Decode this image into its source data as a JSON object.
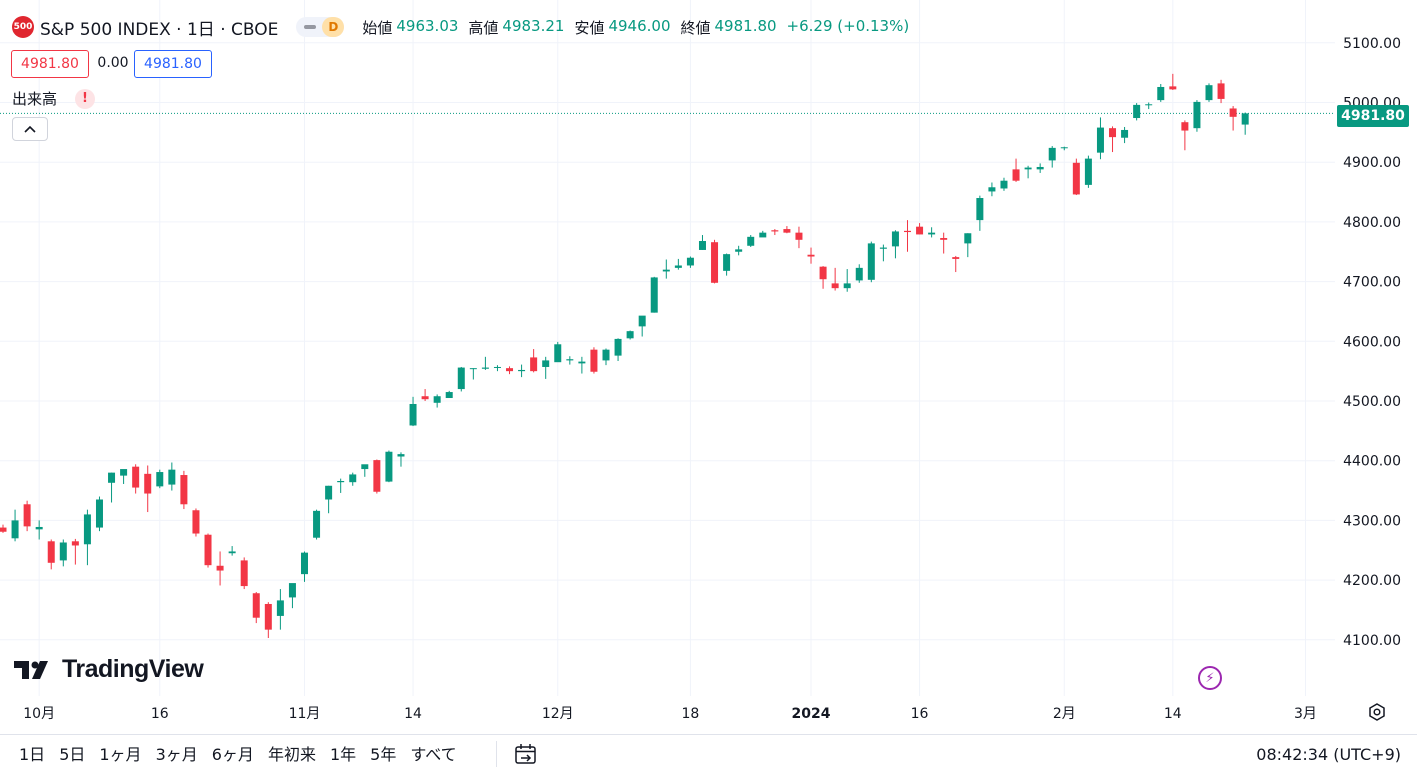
{
  "header": {
    "symbol_badge": "500",
    "title": "S&P 500 INDEX · 1日 · CBOE",
    "market_status": "D",
    "ohlc": [
      {
        "label": "始値",
        "value": "4963.03"
      },
      {
        "label": "高値",
        "value": "4983.21"
      },
      {
        "label": "安値",
        "value": "4946.00"
      },
      {
        "label": "終値",
        "value": "4981.80"
      }
    ],
    "change": "+6.29 (+0.13%)"
  },
  "price_boxes": {
    "bid": "4981.80",
    "spread": "0.00",
    "ask": "4981.80"
  },
  "volume_label": "出来高",
  "volume_warning": "!",
  "last_price_label": "4981.80",
  "logo_text": "TradingView",
  "toolbar": {
    "ranges": [
      "1日",
      "5日",
      "1ヶ月",
      "3ヶ月",
      "6ヶ月",
      "年初来",
      "1年",
      "5年",
      "すべて"
    ],
    "clock": "08:42:34 (UTC+9)"
  },
  "icons": {
    "calendar": "calendar-goto-icon",
    "settings": "settings-icon",
    "bolt": "lightning-icon",
    "collapse": "chevron-up-icon"
  },
  "colors": {
    "up": "#089981",
    "down": "#f23645",
    "grid": "#f0f3fa",
    "text": "#131722"
  },
  "chart_data": {
    "type": "candlestick",
    "title": "S&P 500 INDEX · 1日 · CBOE",
    "ylim": [
      4025,
      5125
    ],
    "y_ticks": [
      "4100.00",
      "4200.00",
      "4300.00",
      "4400.00",
      "4500.00",
      "4600.00",
      "4700.00",
      "4800.00",
      "4900.00",
      "5000.00",
      "5100.00"
    ],
    "x_ticks": [
      {
        "index": 3,
        "label": "10月",
        "bold": false
      },
      {
        "index": 13,
        "label": "16",
        "bold": false
      },
      {
        "index": 25,
        "label": "11月",
        "bold": false
      },
      {
        "index": 34,
        "label": "14",
        "bold": false
      },
      {
        "index": 46,
        "label": "12月",
        "bold": false
      },
      {
        "index": 57,
        "label": "18",
        "bold": false
      },
      {
        "index": 67,
        "label": "2024",
        "bold": true
      },
      {
        "index": 76,
        "label": "16",
        "bold": false
      },
      {
        "index": 88,
        "label": "2月",
        "bold": false
      },
      {
        "index": 97,
        "label": "14",
        "bold": false
      },
      {
        "index": 108,
        "label": "3月",
        "bold": false
      }
    ],
    "last_close": 4981.8,
    "candles": [
      {
        "o": 4288,
        "h": 4293,
        "l": 4279,
        "c": 4281
      },
      {
        "o": 4270,
        "h": 4318,
        "l": 4265,
        "c": 4300
      },
      {
        "o": 4327,
        "h": 4333,
        "l": 4282,
        "c": 4290
      },
      {
        "o": 4285,
        "h": 4300,
        "l": 4268,
        "c": 4289
      },
      {
        "o": 4265,
        "h": 4268,
        "l": 4218,
        "c": 4229
      },
      {
        "o": 4233,
        "h": 4268,
        "l": 4223,
        "c": 4263
      },
      {
        "o": 4265,
        "h": 4269,
        "l": 4226,
        "c": 4258
      },
      {
        "o": 4260,
        "h": 4318,
        "l": 4225,
        "c": 4310
      },
      {
        "o": 4288,
        "h": 4340,
        "l": 4282,
        "c": 4335
      },
      {
        "o": 4363,
        "h": 4380,
        "l": 4330,
        "c": 4380
      },
      {
        "o": 4375,
        "h": 4385,
        "l": 4361,
        "c": 4386
      },
      {
        "o": 4390,
        "h": 4394,
        "l": 4345,
        "c": 4355
      },
      {
        "o": 4378,
        "h": 4392,
        "l": 4314,
        "c": 4345
      },
      {
        "o": 4357,
        "h": 4385,
        "l": 4354,
        "c": 4381
      },
      {
        "o": 4360,
        "h": 4397,
        "l": 4350,
        "c": 4385
      },
      {
        "o": 4376,
        "h": 4383,
        "l": 4319,
        "c": 4327
      },
      {
        "o": 4317,
        "h": 4320,
        "l": 4273,
        "c": 4278
      },
      {
        "o": 4276,
        "h": 4278,
        "l": 4221,
        "c": 4225
      },
      {
        "o": 4224,
        "h": 4248,
        "l": 4191,
        "c": 4216
      },
      {
        "o": 4245,
        "h": 4257,
        "l": 4241,
        "c": 4248
      },
      {
        "o": 4233,
        "h": 4238,
        "l": 4185,
        "c": 4190
      },
      {
        "o": 4178,
        "h": 4180,
        "l": 4128,
        "c": 4137
      },
      {
        "o": 4160,
        "h": 4163,
        "l": 4103,
        "c": 4117
      },
      {
        "o": 4140,
        "h": 4185,
        "l": 4117,
        "c": 4166
      },
      {
        "o": 4171,
        "h": 4194,
        "l": 4153,
        "c": 4195
      },
      {
        "o": 4210,
        "h": 4248,
        "l": 4197,
        "c": 4246
      },
      {
        "o": 4271,
        "h": 4318,
        "l": 4268,
        "c": 4316
      },
      {
        "o": 4335,
        "h": 4358,
        "l": 4312,
        "c": 4358
      },
      {
        "o": 4364,
        "h": 4370,
        "l": 4346,
        "c": 4366
      },
      {
        "o": 4364,
        "h": 4380,
        "l": 4358,
        "c": 4377
      },
      {
        "o": 4386,
        "h": 4392,
        "l": 4373,
        "c": 4394
      },
      {
        "o": 4401,
        "h": 4402,
        "l": 4345,
        "c": 4348
      },
      {
        "o": 4365,
        "h": 4417,
        "l": 4364,
        "c": 4415
      },
      {
        "o": 4407,
        "h": 4414,
        "l": 4390,
        "c": 4411
      },
      {
        "o": 4459,
        "h": 4507,
        "l": 4458,
        "c": 4495
      },
      {
        "o": 4508,
        "h": 4520,
        "l": 4500,
        "c": 4503
      },
      {
        "o": 4497,
        "h": 4511,
        "l": 4489,
        "c": 4508
      },
      {
        "o": 4505,
        "h": 4517,
        "l": 4505,
        "c": 4515
      },
      {
        "o": 4520,
        "h": 4557,
        "l": 4516,
        "c": 4556
      },
      {
        "o": 4555,
        "h": 4555,
        "l": 4536,
        "c": 4555
      },
      {
        "o": 4554,
        "h": 4574,
        "l": 4552,
        "c": 4556
      },
      {
        "o": 4557,
        "h": 4560,
        "l": 4550,
        "c": 4557
      },
      {
        "o": 4555,
        "h": 4558,
        "l": 4545,
        "c": 4550
      },
      {
        "o": 4550,
        "h": 4561,
        "l": 4540,
        "c": 4552
      },
      {
        "o": 4573,
        "h": 4587,
        "l": 4548,
        "c": 4550
      },
      {
        "o": 4557,
        "h": 4574,
        "l": 4537,
        "c": 4568
      },
      {
        "o": 4565,
        "h": 4599,
        "l": 4567,
        "c": 4595
      },
      {
        "o": 4568,
        "h": 4575,
        "l": 4561,
        "c": 4570
      },
      {
        "o": 4563,
        "h": 4574,
        "l": 4546,
        "c": 4566
      },
      {
        "o": 4586,
        "h": 4590,
        "l": 4546,
        "c": 4549
      },
      {
        "o": 4568,
        "h": 4588,
        "l": 4560,
        "c": 4586
      },
      {
        "o": 4576,
        "h": 4605,
        "l": 4567,
        "c": 4604
      },
      {
        "o": 4605,
        "h": 4618,
        "l": 4603,
        "c": 4617
      },
      {
        "o": 4625,
        "h": 4633,
        "l": 4608,
        "c": 4643
      },
      {
        "o": 4648,
        "h": 4708,
        "l": 4648,
        "c": 4707
      },
      {
        "o": 4717,
        "h": 4737,
        "l": 4705,
        "c": 4720
      },
      {
        "o": 4723,
        "h": 4738,
        "l": 4720,
        "c": 4727
      },
      {
        "o": 4727,
        "h": 4742,
        "l": 4723,
        "c": 4740
      },
      {
        "o": 4753,
        "h": 4778,
        "l": 4753,
        "c": 4768
      },
      {
        "o": 4766,
        "h": 4770,
        "l": 4697,
        "c": 4698
      },
      {
        "o": 4718,
        "h": 4747,
        "l": 4710,
        "c": 4746
      },
      {
        "o": 4750,
        "h": 4760,
        "l": 4744,
        "c": 4754
      },
      {
        "o": 4760,
        "h": 4778,
        "l": 4758,
        "c": 4775
      },
      {
        "o": 4774,
        "h": 4785,
        "l": 4775,
        "c": 4782
      },
      {
        "o": 4786,
        "h": 4788,
        "l": 4778,
        "c": 4784
      },
      {
        "o": 4788,
        "h": 4793,
        "l": 4781,
        "c": 4782
      },
      {
        "o": 4782,
        "h": 4792,
        "l": 4756,
        "c": 4770
      },
      {
        "o": 4745,
        "h": 4757,
        "l": 4730,
        "c": 4742
      },
      {
        "o": 4725,
        "h": 4726,
        "l": 4688,
        "c": 4704
      },
      {
        "o": 4697,
        "h": 4723,
        "l": 4685,
        "c": 4689
      },
      {
        "o": 4689,
        "h": 4721,
        "l": 4683,
        "c": 4697
      },
      {
        "o": 4702,
        "h": 4729,
        "l": 4698,
        "c": 4723
      },
      {
        "o": 4703,
        "h": 4767,
        "l": 4699,
        "c": 4764
      },
      {
        "o": 4755,
        "h": 4762,
        "l": 4734,
        "c": 4757
      },
      {
        "o": 4759,
        "h": 4786,
        "l": 4739,
        "c": 4784
      },
      {
        "o": 4785,
        "h": 4803,
        "l": 4750,
        "c": 4783
      },
      {
        "o": 4792,
        "h": 4798,
        "l": 4779,
        "c": 4779
      },
      {
        "o": 4779,
        "h": 4791,
        "l": 4774,
        "c": 4782
      },
      {
        "o": 4773,
        "h": 4782,
        "l": 4747,
        "c": 4770
      },
      {
        "o": 4741,
        "h": 4743,
        "l": 4716,
        "c": 4738
      },
      {
        "o": 4764,
        "h": 4781,
        "l": 4741,
        "c": 4781
      },
      {
        "o": 4803,
        "h": 4844,
        "l": 4785,
        "c": 4840
      },
      {
        "o": 4851,
        "h": 4866,
        "l": 4843,
        "c": 4858
      },
      {
        "o": 4856,
        "h": 4874,
        "l": 4852,
        "c": 4869
      },
      {
        "o": 4888,
        "h": 4906,
        "l": 4867,
        "c": 4869
      },
      {
        "o": 4888,
        "h": 4894,
        "l": 4873,
        "c": 4891
      },
      {
        "o": 4888,
        "h": 4898,
        "l": 4882,
        "c": 4892
      },
      {
        "o": 4903,
        "h": 4927,
        "l": 4891,
        "c": 4924
      },
      {
        "o": 4924,
        "h": 4926,
        "l": 4920,
        "c": 4925
      },
      {
        "o": 4899,
        "h": 4906,
        "l": 4845,
        "c": 4846
      },
      {
        "o": 4862,
        "h": 4911,
        "l": 4857,
        "c": 4906
      },
      {
        "o": 4916,
        "h": 4975,
        "l": 4905,
        "c": 4958
      },
      {
        "o": 4957,
        "h": 4960,
        "l": 4917,
        "c": 4942
      },
      {
        "o": 4941,
        "h": 4959,
        "l": 4932,
        "c": 4954
      },
      {
        "o": 4974,
        "h": 4999,
        "l": 4970,
        "c": 4996
      },
      {
        "o": 4997,
        "h": 5000,
        "l": 4989,
        "c": 4997
      },
      {
        "o": 5004,
        "h": 5031,
        "l": 5001,
        "c": 5026
      },
      {
        "o": 5027,
        "h": 5048,
        "l": 5021,
        "c": 5022
      },
      {
        "o": 4967,
        "h": 4970,
        "l": 4920,
        "c": 4953
      },
      {
        "o": 4957,
        "h": 5004,
        "l": 4951,
        "c": 5001
      },
      {
        "o": 5004,
        "h": 5032,
        "l": 5001,
        "c": 5029
      },
      {
        "o": 5032,
        "h": 5038,
        "l": 4999,
        "c": 5006
      },
      {
        "o": 4990,
        "h": 4994,
        "l": 4953,
        "c": 4976
      },
      {
        "o": 4963.03,
        "h": 4983.21,
        "l": 4946.0,
        "c": 4981.8
      }
    ]
  }
}
